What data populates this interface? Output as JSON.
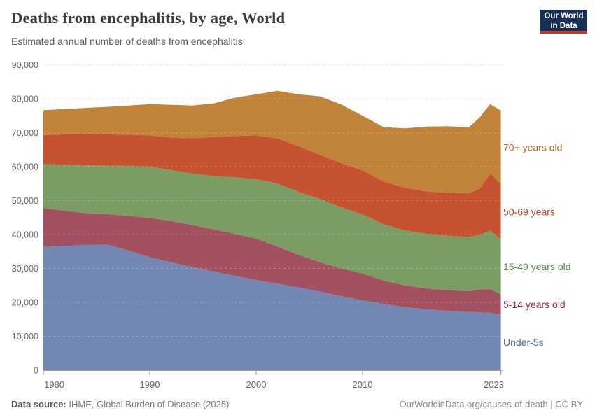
{
  "header": {
    "title": "Deaths from encephalitis, by age, World",
    "subtitle": "Estimated annual number of deaths from encephalitis",
    "logo": {
      "line1": "Our World",
      "line2": "in Data"
    }
  },
  "footer": {
    "source_label": "Data source:",
    "source_text": " IHME, Global Burden of Disease (2025)",
    "link_text": "OurWorldinData.org/causes-of-death | CC BY"
  },
  "colors": {
    "title": "#3b3b3b",
    "subtitle": "#5a5a5a",
    "axis_text": "#666666",
    "grid": "#dcdcdc",
    "grid_over_area": "rgba(255,255,255,0.25)",
    "axis_line": "#9a9a9a",
    "logo_bg": "#163056",
    "logo_underline": "#c0372b"
  },
  "chart_data": {
    "type": "area",
    "stacked": true,
    "title": "Deaths from encephalitis, by age, World",
    "xlabel": "",
    "ylabel": "",
    "ylim": [
      0,
      90000
    ],
    "grid": "horizontal-dashed",
    "legend_position": "right-inline-labels",
    "x": [
      1980,
      1982,
      1984,
      1986,
      1988,
      1990,
      1992,
      1994,
      1996,
      1998,
      2000,
      2002,
      2004,
      2006,
      2008,
      2010,
      2012,
      2014,
      2016,
      2018,
      2020,
      2021,
      2022,
      2023
    ],
    "x_ticks": [
      1980,
      1990,
      2000,
      2010,
      2023
    ],
    "y_ticks": [
      0,
      10000,
      20000,
      30000,
      40000,
      50000,
      60000,
      70000,
      80000,
      90000
    ],
    "y_tick_labels": [
      "0",
      "10,000",
      "20,000",
      "30,000",
      "40,000",
      "50,000",
      "60,000",
      "70,000",
      "80,000",
      "90,000"
    ],
    "series": [
      {
        "name": "Under-5s",
        "label": "Under-5s",
        "color": "#7387b3",
        "label_color": "#4c6bac",
        "values": [
          36300,
          36600,
          36900,
          37000,
          35300,
          33300,
          31800,
          30400,
          29100,
          27800,
          26600,
          25500,
          24400,
          23200,
          21800,
          20600,
          19500,
          18600,
          18000,
          17500,
          17200,
          17100,
          16900,
          16400
        ]
      },
      {
        "name": "5-14 years old",
        "label": "5-14 years old",
        "color": "#a35061",
        "label_color": "#9b2c3f",
        "values": [
          11500,
          10400,
          9400,
          9000,
          10200,
          11600,
          12200,
          12400,
          12400,
          12400,
          12200,
          11000,
          9600,
          8600,
          8200,
          7900,
          6900,
          6400,
          6100,
          6100,
          6100,
          6700,
          7000,
          6000
        ]
      },
      {
        "name": "15-49 years old",
        "label": "15-49 years old",
        "color": "#7b9d64",
        "label_color": "#5c8348",
        "values": [
          12900,
          13600,
          14100,
          14300,
          14700,
          15100,
          15000,
          15200,
          15700,
          16600,
          17500,
          18500,
          18500,
          18700,
          18000,
          17400,
          16600,
          16200,
          16100,
          16000,
          16000,
          16100,
          17200,
          16300
        ]
      },
      {
        "name": "50-69 years",
        "label": "50-69 years",
        "color": "#c6532f",
        "label_color": "#bf4123",
        "values": [
          8600,
          8900,
          9200,
          9200,
          9200,
          9200,
          9600,
          10400,
          11500,
          12200,
          12900,
          13300,
          13500,
          13000,
          13000,
          13000,
          12600,
          12600,
          12500,
          12700,
          12800,
          13600,
          16800,
          16100
        ]
      },
      {
        "name": "70+ years old",
        "label": "70+ years old",
        "color": "#c1823a",
        "label_color": "#ad6621",
        "values": [
          7300,
          7500,
          7700,
          8100,
          8600,
          9200,
          9600,
          9600,
          9900,
          11300,
          12100,
          14000,
          15300,
          17200,
          17300,
          16100,
          16000,
          17500,
          19100,
          19600,
          19500,
          21000,
          20500,
          21700
        ]
      }
    ]
  }
}
